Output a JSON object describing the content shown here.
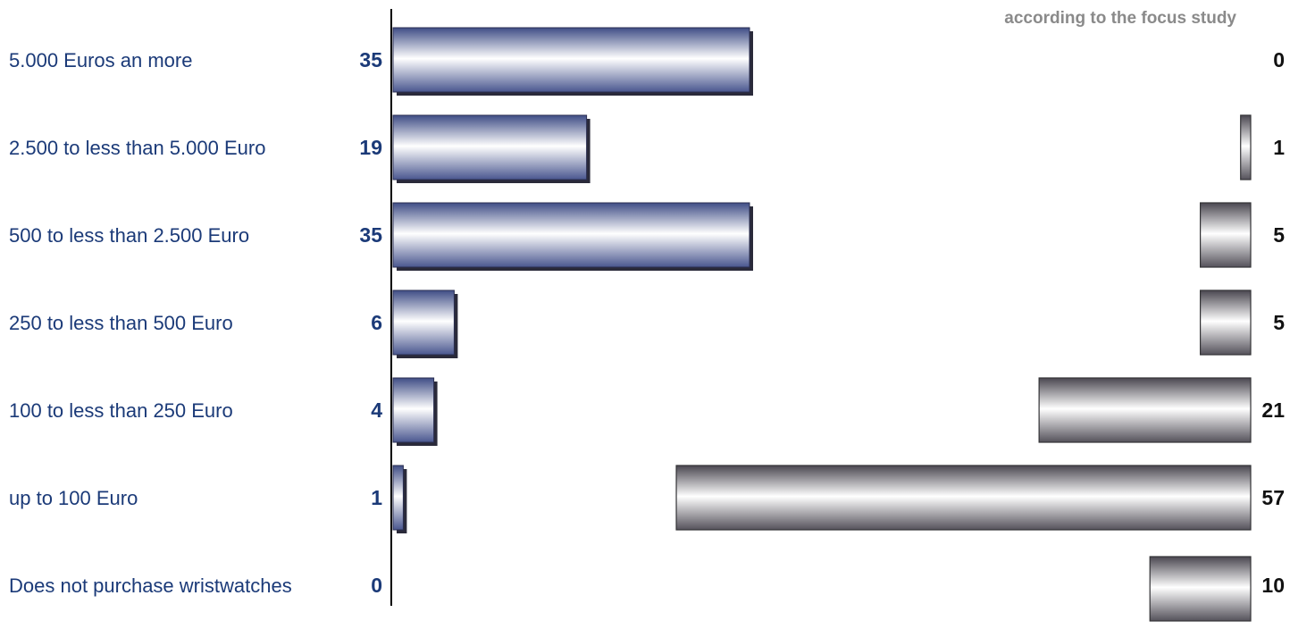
{
  "chart_data": {
    "type": "bar",
    "subtitle": "according to the focus study",
    "categories": [
      "5.000 Euros an more",
      "2.500 to less than 5.000 Euro",
      "500 to less than 2.500 Euro",
      "250 to less than 500 Euro",
      "100 to less than 250 Euro",
      "up to 100 Euro",
      "Does not purchase wristwatches"
    ],
    "series": [
      {
        "values": [
          35,
          19,
          35,
          6,
          4,
          1,
          0
        ],
        "color": "#7b86b8",
        "side": "left"
      },
      {
        "values": [
          0,
          1,
          5,
          5,
          21,
          57,
          10
        ],
        "color": "#8a8790",
        "side": "right"
      }
    ],
    "grid": false,
    "legend": "none"
  }
}
